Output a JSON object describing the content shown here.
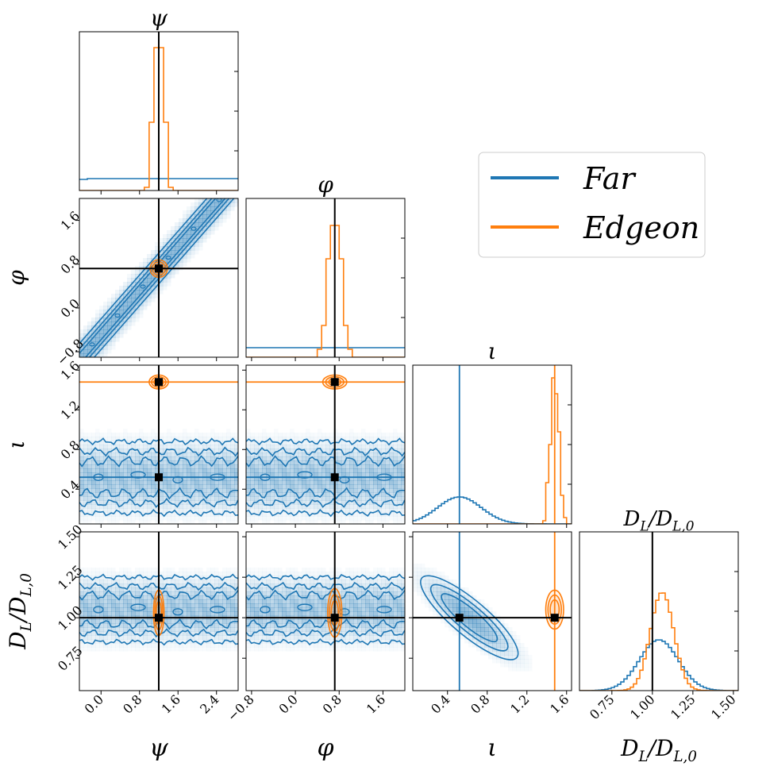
{
  "chart_data": {
    "type": "corner",
    "parameters": [
      {
        "key": "psi",
        "label": "ψ",
        "range": [
          -0.45,
          2.85
        ],
        "ticks": [
          0.0,
          0.8,
          1.6,
          2.4
        ],
        "tick_labels": [
          "0.0",
          "0.8",
          "1.6",
          "2.4"
        ],
        "truth": 1.2
      },
      {
        "key": "phi",
        "label": "φ",
        "range": [
          -0.9,
          2.0
        ],
        "ticks": [
          -0.8,
          0.0,
          0.8,
          1.6
        ],
        "tick_labels": [
          "−0.8",
          "0.0",
          "0.8",
          "1.6"
        ],
        "truth": 0.72
      },
      {
        "key": "iota",
        "label": "ι",
        "range": [
          0.05,
          1.65
        ],
        "ticks": [
          0.4,
          0.8,
          1.2,
          1.6
        ],
        "tick_labels": [
          "0.4",
          "0.8",
          "1.2",
          "1.6"
        ],
        "truth_far": 0.52,
        "truth_edgeon": 1.48
      },
      {
        "key": "dl",
        "label": "D_L/D_{L,0}",
        "range": [
          0.55,
          1.53
        ],
        "ticks": [
          0.75,
          1.0,
          1.25,
          1.5
        ],
        "tick_labels": [
          "0.75",
          "1.00",
          "1.25",
          "1.50"
        ],
        "truth": 1.0
      }
    ],
    "axis_labels": {
      "psi": {
        "main": "ψ"
      },
      "phi": {
        "main": "φ"
      },
      "iota": {
        "main": "ι"
      },
      "dl": {
        "main": "D",
        "sub1": "L",
        "slash": "/D",
        "sub2": "L,0"
      }
    },
    "series": [
      {
        "name": "Far",
        "color": "#1f77b4"
      },
      {
        "name": "Edgeon",
        "color": "#ff7f0e"
      }
    ],
    "marginals": {
      "psi": {
        "far": [
          0.07,
          0.075,
          0.075,
          0.075,
          0.075,
          0.075,
          0.075,
          0.075,
          0.075,
          0.075,
          0.075,
          0.075,
          0.075,
          0.075,
          0.075,
          0.075,
          0.075,
          0.075,
          0.075,
          0.075
        ],
        "edgeon_bins": [
          0.9,
          1.0,
          1.1,
          1.2,
          1.3,
          1.4,
          1.5
        ],
        "edgeon": [
          0.02,
          0.43,
          0.9,
          0.9,
          0.43,
          0.02
        ]
      },
      "phi": {
        "far": [
          0.06,
          0.06,
          0.06,
          0.06,
          0.06,
          0.06,
          0.06,
          0.06,
          0.06,
          0.06,
          0.06,
          0.06,
          0.06,
          0.06,
          0.06,
          0.06
        ],
        "edgeon_bins": [
          0.4,
          0.48,
          0.56,
          0.64,
          0.72,
          0.8,
          0.88,
          0.96,
          1.04
        ],
        "edgeon": [
          0.05,
          0.2,
          0.62,
          0.83,
          0.83,
          0.62,
          0.2,
          0.05
        ]
      },
      "iota": {
        "far_center": 0.52,
        "far_width": 0.22,
        "far_peak": 0.17,
        "edgeon_bins": [
          1.36,
          1.39,
          1.42,
          1.45,
          1.48,
          1.51,
          1.54,
          1.57,
          1.6
        ],
        "edgeon": [
          0.02,
          0.26,
          0.5,
          0.92,
          0.82,
          0.58,
          0.18,
          0.04
        ]
      },
      "dl": {
        "far_center": 1.04,
        "far_width": 0.12,
        "far_peak": 0.32,
        "edgeon_center": 1.06,
        "edgeon_width": 0.072,
        "edgeon_peak": 0.62
      }
    },
    "panels_2d": [
      {
        "x": "psi",
        "y": "phi",
        "far": "correlated",
        "edgeon": {
          "cx": 1.2,
          "cy": 0.72,
          "rx": 0.18,
          "ry": 0.16
        }
      },
      {
        "x": "psi",
        "y": "iota",
        "far": "band",
        "far_center": 0.52,
        "far_halfwidth": 0.36,
        "edgeon": {
          "cx": 1.2,
          "cy": 1.48,
          "rx": 0.2,
          "ry": 0.07
        }
      },
      {
        "x": "phi",
        "y": "iota",
        "far": "band",
        "far_center": 0.52,
        "far_halfwidth": 0.36,
        "edgeon": {
          "cx": 0.72,
          "cy": 1.48,
          "rx": 0.22,
          "ry": 0.07
        }
      },
      {
        "x": "psi",
        "y": "dl",
        "far": "band",
        "far_center": 1.05,
        "far_halfwidth": 0.2,
        "edgeon": {
          "cx": 1.2,
          "cy": 1.03,
          "rx": 0.11,
          "ry": 0.14
        }
      },
      {
        "x": "phi",
        "y": "dl",
        "far": "band",
        "far_center": 1.05,
        "far_halfwidth": 0.2,
        "edgeon": {
          "cx": 0.72,
          "cy": 1.03,
          "rx": 0.13,
          "ry": 0.15
        }
      },
      {
        "x": "iota",
        "y": "dl",
        "far": "diagonal",
        "edgeon": {
          "cx": 1.48,
          "cy": 1.05,
          "rx": 0.09,
          "ry": 0.12
        }
      }
    ],
    "legend": {
      "position": "upper-right",
      "entries": [
        "Far",
        "Edgeon"
      ]
    }
  }
}
